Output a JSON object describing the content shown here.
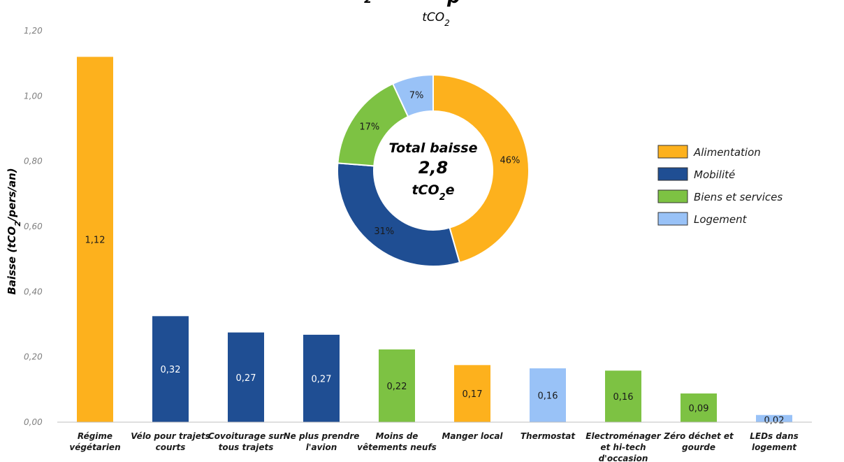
{
  "chart_data": {
    "type": "bar",
    "title_visible": "  ",
    "subtitle": "tCO2",
    "ylabel": "Baisse (tCO2/pers/an)",
    "ylim": [
      0,
      1.2
    ],
    "yticks": [
      "0,00",
      "0,20",
      "0,40",
      "0,60",
      "0,80",
      "1,00",
      "1,20"
    ],
    "categories": [
      [
        "Régime",
        "végétarien"
      ],
      [
        "Vélo pour trajets",
        "courts"
      ],
      [
        "Covoiturage sur",
        "tous trajets"
      ],
      [
        "Ne plus prendre",
        "l'avion"
      ],
      [
        "Moins de",
        "vêtements neufs"
      ],
      [
        "Manger local"
      ],
      [
        "Thermostat"
      ],
      [
        "Electroménager",
        "et hi-tech",
        "d'occasion"
      ],
      [
        "Zéro déchet et",
        "gourde"
      ],
      [
        "LEDs dans",
        "logement"
      ]
    ],
    "values": [
      1.12,
      0.32,
      0.27,
      0.27,
      0.22,
      0.17,
      0.16,
      0.16,
      0.09,
      0.02
    ],
    "plot_values": [
      1.12,
      0.325,
      0.275,
      0.268,
      0.223,
      0.175,
      0.165,
      0.158,
      0.088,
      0.022
    ],
    "value_labels": [
      "1,12",
      "0,32",
      "0,27",
      "0,27",
      "0,22",
      "0,17",
      "0,16",
      "0,16",
      "0,09",
      "0,02"
    ],
    "bar_groups": [
      "Alimentation",
      "Mobilité",
      "Mobilité",
      "Mobilité",
      "Biens et services",
      "Alimentation",
      "Logement",
      "Biens et services",
      "Biens et services",
      "Logement"
    ],
    "legend": [
      {
        "name": "Alimentation",
        "color": "#FDB11D"
      },
      {
        "name": "Mobilité",
        "color": "#1F4E93"
      },
      {
        "name": "Biens et services",
        "color": "#7DC243"
      },
      {
        "name": "Logement",
        "color": "#99C2F7"
      }
    ],
    "donut": {
      "type": "pie",
      "slices": [
        {
          "name": "Alimentation",
          "value": 46,
          "label": "46%"
        },
        {
          "name": "Mobilité",
          "value": 31,
          "label": "31%"
        },
        {
          "name": "Biens et services",
          "value": 17,
          "label": "17%"
        },
        {
          "name": "Logement",
          "value": 7,
          "label": "7%"
        }
      ],
      "center_line1": "Total baisse",
      "center_line2": "2,8",
      "center_line3_main": "tCO",
      "center_line3_sub": "2",
      "center_line3_end": "e"
    }
  }
}
